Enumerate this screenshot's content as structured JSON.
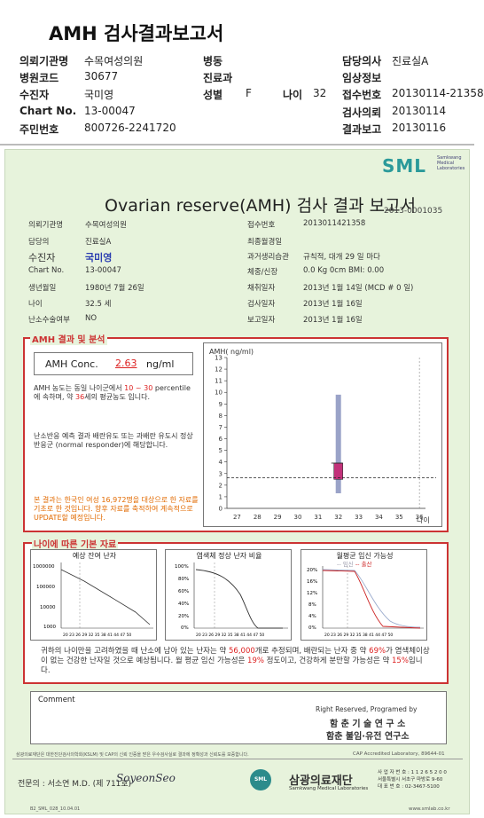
{
  "header": {
    "title": "AMH 검사결과보고서",
    "fields": [
      {
        "label": "의뢰기관명",
        "value": "수목여성의원"
      },
      {
        "label": "병원코드",
        "value": "30677"
      },
      {
        "label": "수진자",
        "value": "국미영"
      },
      {
        "label": "Chart No.",
        "value": "13-00047"
      },
      {
        "label": "주민번호",
        "value": "800726-2241720"
      },
      {
        "label": "병동",
        "value": ""
      },
      {
        "label": "진료과",
        "value": ""
      },
      {
        "label": "성별",
        "value": "F"
      },
      {
        "label": "나이",
        "value": "32"
      },
      {
        "label": "담당의사",
        "value": "진료실A"
      },
      {
        "label": "임상정보",
        "value": ""
      },
      {
        "label": "접수번호",
        "value": "20130114-21358"
      },
      {
        "label": "검사의뢰",
        "value": "20130114"
      },
      {
        "label": "결과보고",
        "value": "20130116"
      }
    ]
  },
  "report": {
    "logo": "SML",
    "logo_sub": [
      "Samkwang",
      "Medical",
      "Laboratories"
    ],
    "title": "Ovarian reserve(AMH) 검사 결과 보고서",
    "report_id": "2013-0001035",
    "left": [
      {
        "label": "의뢰기관명",
        "value": "수목여성의원"
      },
      {
        "label": "담당의",
        "value": "진료실A"
      },
      {
        "label": "수진자",
        "value": "국미영"
      },
      {
        "label": "Chart No.",
        "value": "13-00047"
      },
      {
        "label": "생년월일",
        "value": "1980년 7월 26일"
      },
      {
        "label": "나이",
        "value": "32.5 세"
      },
      {
        "label": "난소수술여부",
        "value": "NO"
      }
    ],
    "right": [
      {
        "label": "접수번호",
        "value": "2013011421358"
      },
      {
        "label": "최종월경일",
        "value": ""
      },
      {
        "label": "과거생리습관",
        "value": "규칙적, 대개  29 일 마다"
      },
      {
        "label": "체중/신장",
        "value": "0.0 Kg      0cm      BMI:  0.00"
      },
      {
        "label": "채취일자",
        "value": "2013년 1월 14일  (MCD # 0 일)"
      },
      {
        "label": "검사일자",
        "value": "2013년 1월 16일"
      },
      {
        "label": "보고일자",
        "value": "2013년 1월 16일"
      }
    ],
    "amh": {
      "section_title": "AMH 결과 및 분석",
      "conc_label": "AMH Conc.",
      "conc_value": "2.63",
      "conc_unit": "ng/ml",
      "para1_a": "AMH 농도는 동일 나이군에서",
      "para1_range": "10 ~ 30",
      "para1_b": "percentile에 속하며, 약",
      "para1_age": "36",
      "para1_c": "세의 평균농도 입니다.",
      "para2": "난소반응 예측 결과 배란유도 또는 과배란 유도시 정상반응군 (normal responder)에 해당합니다.",
      "para3": "본 결과는 한국인 여성 16,972명을 대상으로 한 자료를 기초로 한 것입니다. 향후 자료를 축적하여 계속적으로 UPDATE할 예정입니다."
    },
    "chart_data": {
      "type": "bar",
      "title": "AMH( ng/ml)",
      "xlabel": "나이",
      "x_ticks": [
        27,
        28,
        29,
        30,
        31,
        32,
        33,
        34,
        35,
        36
      ],
      "y_ticks": [
        0,
        1,
        2,
        3,
        4,
        5,
        6,
        7,
        8,
        9,
        10,
        11,
        12,
        13
      ],
      "ylim": [
        0,
        13
      ],
      "range_bar": {
        "age": 32,
        "low": 1.3,
        "high": 9.8
      },
      "iqr_box": {
        "age": 32,
        "low": 2.5,
        "high": 3.9
      },
      "patient": {
        "age": 32.5,
        "amh": 2.63
      }
    },
    "basic": {
      "section_title": "나이에 따른 기본 자료",
      "charts": [
        {
          "title": "예상 잔여 난자",
          "y_ticks": [
            "1000000",
            "100000",
            "10000",
            "1000"
          ],
          "x_ticks": "20 23 26 29 32 35 38 41 44 47 50"
        },
        {
          "title": "염색체 정상 난자 비율",
          "y_ticks": [
            "100%",
            "80%",
            "60%",
            "40%",
            "20%",
            "0%"
          ],
          "x_ticks": "20 23 26 29 32 35 38 41 44 47 50"
        },
        {
          "title": "월평균 임신 가능성",
          "legend": [
            "임신",
            "출산"
          ],
          "y_ticks": [
            "20%",
            "16%",
            "12%",
            "8%",
            "4%",
            "0%"
          ],
          "x_ticks": "20 23 26 29 32 35 38 41 44 47 50"
        }
      ],
      "summary_a": "귀하의 나이만을 고려하였을 때 난소에 남아 있는 난자는 약",
      "summary_eggs": "56,000",
      "summary_b": "개로 추정되며, 배란되는 난자 중 약",
      "summary_pct": "69%",
      "summary_c": "가 염색체이상이 없는 건강한 난자일 것으로 예상됩니다. 월 평균 임신 가능성은",
      "summary_prob": "19%",
      "summary_d": "정도이고, 건강하게 분만할 가능성은 약",
      "summary_birth": "15%",
      "summary_e": "입니다."
    },
    "comment_label": "Comment",
    "rights": "Right Reserved, Programed by",
    "lab1": "함 춘 기 술 연 구 소",
    "lab2": "함춘 불임·유전 연구소",
    "cert": "삼광의료재단은 대한진단검사의학회(KSLM) 및 CAP의 신뢰 인증을 받은 우수검사실로 결과에 정확성과 신뢰도를 보증합니다.",
    "cap": "CAP  Accredited  Laboratory,  89644-01",
    "specialist": "전문의 : 서소연 M.D. (제 711호)",
    "signature": "SoyeonSeo",
    "foundation": "삼광의료재단",
    "foundation_sub": "Samkwang Medical Laboratories",
    "contact": [
      "사 업 자 번 호 : 1 1 2 6 5 2 0 0",
      "서울특별시 서초구 마방로 9-60",
      "대 표 번 호 : 02-3467-5100"
    ],
    "footer_code": "B2_SML_028_10.04.01",
    "footer_url": "www.smlab.co.kr"
  }
}
